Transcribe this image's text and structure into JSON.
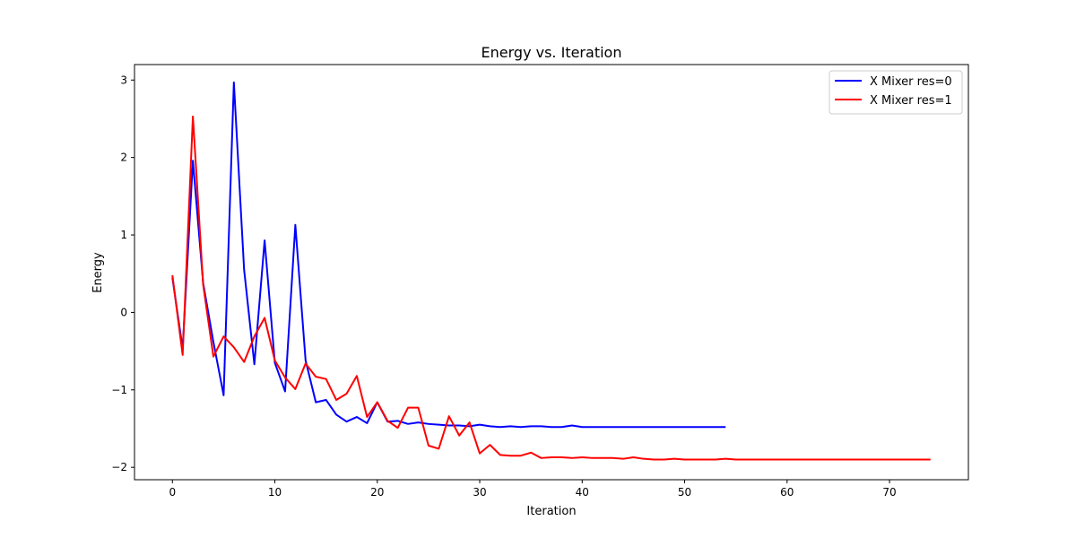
{
  "chart_data": {
    "type": "line",
    "title": "Energy vs. Iteration",
    "xlabel": "Iteration",
    "ylabel": "Energy",
    "xlim": [
      -3.7,
      77.7
    ],
    "ylim": [
      -2.16,
      3.2
    ],
    "xticks": [
      0,
      10,
      20,
      30,
      40,
      50,
      60,
      70
    ],
    "yticks": [
      -2,
      -1,
      0,
      1,
      2,
      3
    ],
    "ytick_labels": [
      "−2",
      "−1",
      "0",
      "1",
      "2",
      "3"
    ],
    "grid": false,
    "legend_position": "top-right",
    "series": [
      {
        "name": "X Mixer res=0",
        "color": "#0000ff",
        "x": [
          0,
          1,
          2,
          3,
          4,
          5,
          6,
          7,
          8,
          9,
          10,
          11,
          12,
          13,
          14,
          15,
          16,
          17,
          18,
          19,
          20,
          21,
          22,
          23,
          24,
          25,
          26,
          27,
          28,
          29,
          30,
          31,
          32,
          33,
          34,
          35,
          36,
          37,
          38,
          39,
          40,
          41,
          42,
          43,
          44,
          45,
          46,
          47,
          48,
          49,
          50,
          51,
          52,
          53,
          54
        ],
        "values": [
          0.45,
          -0.47,
          1.96,
          0.38,
          -0.38,
          -1.07,
          2.97,
          0.55,
          -0.67,
          0.93,
          -0.65,
          -1.02,
          1.13,
          -0.62,
          -1.16,
          -1.13,
          -1.32,
          -1.41,
          -1.35,
          -1.43,
          -1.16,
          -1.41,
          -1.4,
          -1.44,
          -1.42,
          -1.44,
          -1.45,
          -1.46,
          -1.46,
          -1.47,
          -1.45,
          -1.47,
          -1.48,
          -1.47,
          -1.48,
          -1.47,
          -1.47,
          -1.48,
          -1.48,
          -1.46,
          -1.48,
          -1.48,
          -1.48,
          -1.48,
          -1.48,
          -1.48,
          -1.48,
          -1.48,
          -1.48,
          -1.48,
          -1.48,
          -1.48,
          -1.48,
          -1.48,
          -1.48
        ]
      },
      {
        "name": "X Mixer res=1",
        "color": "#ff0000",
        "x": [
          0,
          1,
          2,
          3,
          4,
          5,
          6,
          7,
          8,
          9,
          10,
          11,
          12,
          13,
          14,
          15,
          16,
          17,
          18,
          19,
          20,
          21,
          22,
          23,
          24,
          25,
          26,
          27,
          28,
          29,
          30,
          31,
          32,
          33,
          34,
          35,
          36,
          37,
          38,
          39,
          40,
          41,
          42,
          43,
          44,
          45,
          46,
          47,
          48,
          49,
          50,
          51,
          52,
          53,
          54,
          55,
          56,
          57,
          58,
          59,
          60,
          61,
          62,
          63,
          64,
          65,
          66,
          67,
          68,
          69,
          70,
          71,
          72,
          73,
          74
        ],
        "values": [
          0.48,
          -0.55,
          2.53,
          0.36,
          -0.57,
          -0.31,
          -0.45,
          -0.64,
          -0.31,
          -0.07,
          -0.62,
          -0.84,
          -0.99,
          -0.66,
          -0.83,
          -0.86,
          -1.13,
          -1.05,
          -0.82,
          -1.35,
          -1.16,
          -1.4,
          -1.49,
          -1.23,
          -1.23,
          -1.72,
          -1.76,
          -1.34,
          -1.59,
          -1.42,
          -1.82,
          -1.71,
          -1.84,
          -1.85,
          -1.85,
          -1.81,
          -1.88,
          -1.87,
          -1.87,
          -1.88,
          -1.87,
          -1.88,
          -1.88,
          -1.88,
          -1.89,
          -1.87,
          -1.89,
          -1.9,
          -1.9,
          -1.89,
          -1.9,
          -1.9,
          -1.9,
          -1.9,
          -1.89,
          -1.9,
          -1.9,
          -1.9,
          -1.9,
          -1.9,
          -1.9,
          -1.9,
          -1.9,
          -1.9,
          -1.9,
          -1.9,
          -1.9,
          -1.9,
          -1.9,
          -1.9,
          -1.9,
          -1.9,
          -1.9,
          -1.9,
          -1.9
        ]
      }
    ]
  }
}
